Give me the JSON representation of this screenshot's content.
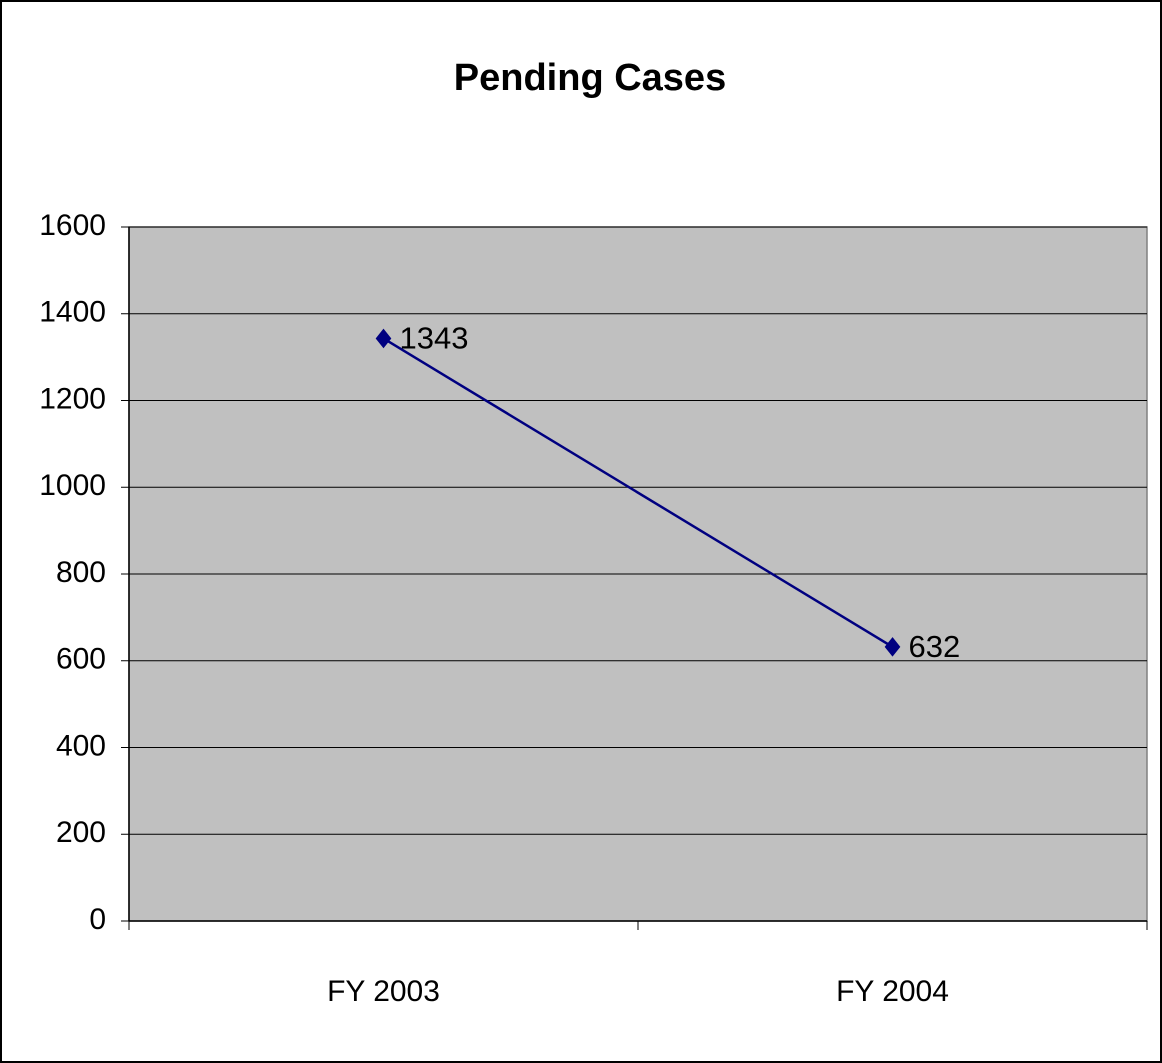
{
  "chart_data": {
    "type": "line",
    "title": "Pending Cases",
    "categories": [
      "FY 2003",
      "FY 2004"
    ],
    "values": [
      1343,
      632
    ],
    "color": "#000080",
    "ylim": [
      0,
      1600
    ],
    "yticks": [
      0,
      200,
      400,
      600,
      800,
      1000,
      1200,
      1400,
      1600
    ],
    "grid": true
  }
}
